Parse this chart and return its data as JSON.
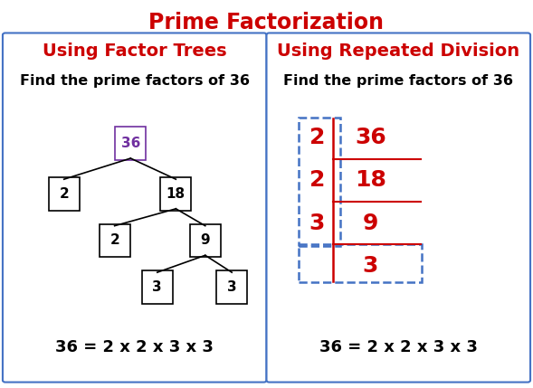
{
  "title": "Prime Factorization",
  "title_color": "#cc0000",
  "title_fontsize": 17,
  "left_panel_title": "Using Factor Trees",
  "right_panel_title": "Using Repeated Division",
  "panel_title_color": "#cc0000",
  "panel_title_fontsize": 14,
  "subtitle": "Find the prime factors of 36",
  "subtitle_color": "#000000",
  "subtitle_fontsize": 11.5,
  "left_formula": "36 = 2 x 2 x 3 x 3",
  "right_formula": "36 = 2 x 2 x 3 x 3",
  "formula_fontsize": 13,
  "panel_border_color": "#4472c4",
  "background_color": "#ffffff",
  "tree_line_color": "#000000",
  "tree_root_color": "#7030a0",
  "division_number_color": "#cc0000",
  "division_line_color": "#cc0000",
  "dashed_box_color": "#4472c4",
  "divisors": [
    "2",
    "2",
    "3"
  ],
  "quotients": [
    "36",
    "18",
    "9",
    "3"
  ]
}
